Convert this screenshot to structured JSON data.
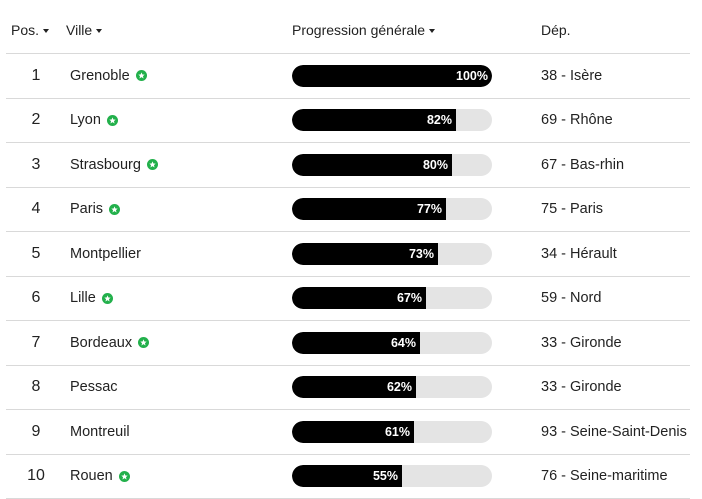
{
  "headers": {
    "pos": "Pos.",
    "ville": "Ville",
    "progression": "Progression générale",
    "dep": "Dép."
  },
  "colors": {
    "star": "#22b04b",
    "bar_fill": "#000000",
    "bar_track": "#e4e4e4"
  },
  "rows": [
    {
      "pos": "1",
      "ville": "Grenoble",
      "star": true,
      "progress": 100,
      "progress_label": "100%",
      "dep": "38 - Isère"
    },
    {
      "pos": "2",
      "ville": "Lyon",
      "star": true,
      "progress": 82,
      "progress_label": "82%",
      "dep": "69 - Rhône"
    },
    {
      "pos": "3",
      "ville": "Strasbourg",
      "star": true,
      "progress": 80,
      "progress_label": "80%",
      "dep": "67 - Bas-rhin"
    },
    {
      "pos": "4",
      "ville": "Paris",
      "star": true,
      "progress": 77,
      "progress_label": "77%",
      "dep": "75 - Paris"
    },
    {
      "pos": "5",
      "ville": "Montpellier",
      "star": false,
      "progress": 73,
      "progress_label": "73%",
      "dep": "34 - Hérault"
    },
    {
      "pos": "6",
      "ville": "Lille",
      "star": true,
      "progress": 67,
      "progress_label": "67%",
      "dep": "59 - Nord"
    },
    {
      "pos": "7",
      "ville": "Bordeaux",
      "star": true,
      "progress": 64,
      "progress_label": "64%",
      "dep": "33 - Gironde"
    },
    {
      "pos": "8",
      "ville": "Pessac",
      "star": false,
      "progress": 62,
      "progress_label": "62%",
      "dep": "33 - Gironde"
    },
    {
      "pos": "9",
      "ville": "Montreuil",
      "star": false,
      "progress": 61,
      "progress_label": "61%",
      "dep": "93 - Seine-Saint-Denis"
    },
    {
      "pos": "10",
      "ville": "Rouen",
      "star": true,
      "progress": 55,
      "progress_label": "55%",
      "dep": "76 - Seine-maritime"
    }
  ]
}
